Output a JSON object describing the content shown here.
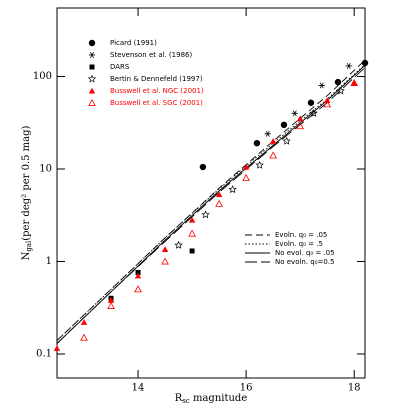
{
  "chart_data": {
    "type": "scatter",
    "xlabel": {
      "main": "R",
      "sub": "sc",
      "rest": " magnitude"
    },
    "ylabel": {
      "main": "N",
      "sub": "gal",
      "rest": "(per deg² per 0.5 mag)"
    },
    "xlim": [
      12.5,
      18.2
    ],
    "ylim": [
      0.055,
      550
    ],
    "log_y": true,
    "xticks": [
      14,
      16,
      18
    ],
    "yticks": [
      0.1,
      1,
      10,
      100
    ],
    "series": [
      {
        "name": "Picard (1991)",
        "marker": "circle",
        "color": "#000000",
        "x": [
          15.2,
          16.2,
          16.7,
          17.2,
          17.7,
          18.2
        ],
        "values": [
          10.5,
          19,
          30,
          52,
          87,
          140
        ]
      },
      {
        "name": "Stevenson et al. (1986)",
        "marker": "asterisk",
        "color": "#000000",
        "x": [
          16.4,
          16.9,
          17.4,
          17.9
        ],
        "values": [
          24,
          40,
          80,
          130
        ]
      },
      {
        "name": "DARS",
        "marker": "square",
        "color": "#000000",
        "x": [
          13.5,
          14.0,
          15.0
        ],
        "values": [
          0.4,
          0.76,
          1.3
        ]
      },
      {
        "name": "Bertin & Dennefeld (1997)",
        "marker": "star-open",
        "color": "#000000",
        "x": [
          14.75,
          15.25,
          15.75,
          16.25,
          16.75,
          17.25,
          17.75
        ],
        "values": [
          1.5,
          3.2,
          6,
          11,
          20,
          40,
          70
        ]
      },
      {
        "name": "Busswell et al. NGC (2001)",
        "marker": "triangle",
        "color": "#ff0000",
        "x": [
          12.5,
          13.0,
          13.5,
          14.0,
          14.5,
          15.0,
          15.5,
          16.0,
          16.5,
          17.0,
          17.5,
          18.0
        ],
        "values": [
          0.115,
          0.22,
          0.38,
          0.7,
          1.35,
          2.8,
          5.3,
          10.5,
          20,
          35,
          55,
          85
        ]
      },
      {
        "name": "Busswell et al. SGC (2001)",
        "marker": "triangle-open",
        "color": "#ff0000",
        "x": [
          13.0,
          13.5,
          14.0,
          14.5,
          15.0,
          15.5,
          16.0,
          16.5,
          17.0,
          17.5,
          18.0
        ],
        "values": [
          0.15,
          0.33,
          0.5,
          1.0,
          2.0,
          4.2,
          8,
          14,
          29,
          50,
          85
        ]
      }
    ],
    "models": [
      {
        "name": "Evoln. q₀ = .05",
        "dash": "7 4",
        "x": [
          12.5,
          13.5,
          14.5,
          15.5,
          16.5,
          17.5,
          18.2
        ],
        "values": [
          0.14,
          0.5,
          1.8,
          6.2,
          20,
          62,
          150
        ]
      },
      {
        "name": "Evoln. q₀ = .5",
        "dash": "1.5 2",
        "x": [
          12.5,
          13.5,
          14.5,
          15.5,
          16.5,
          17.5,
          18.2
        ],
        "values": [
          0.14,
          0.5,
          1.8,
          6.1,
          19,
          57,
          135
        ]
      },
      {
        "name": "No evol. q₀ = .05",
        "dash": "none",
        "x": [
          12.5,
          13.5,
          14.5,
          15.5,
          16.5,
          17.5,
          18.2
        ],
        "values": [
          0.13,
          0.47,
          1.7,
          5.8,
          18,
          55,
          132
        ]
      },
      {
        "name": "No evoln. q₀=0.5",
        "dash": "12 4",
        "x": [
          12.5,
          13.5,
          14.5,
          15.5,
          16.5,
          17.5,
          18.2
        ],
        "values": [
          0.13,
          0.47,
          1.65,
          5.6,
          17.5,
          52,
          125
        ]
      }
    ]
  }
}
